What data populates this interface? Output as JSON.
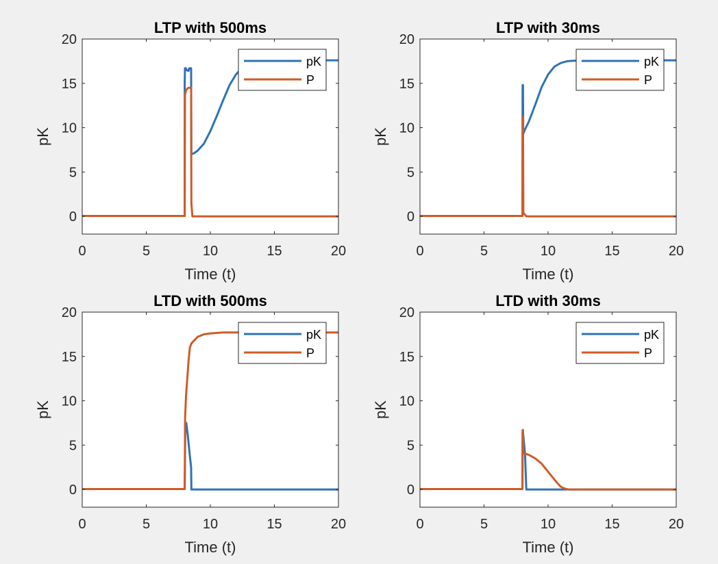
{
  "colors": {
    "pK": "#2f72b5",
    "P": "#cf5b27",
    "background": "#f0f0f0",
    "axes_background": "#ffffff"
  },
  "chart_data": [
    {
      "type": "line",
      "title": "LTP with 500ms",
      "xlabel": "Time (t)",
      "ylabel": "pK",
      "xlim": [
        0,
        20
      ],
      "ylim": [
        -2,
        20
      ],
      "xticks": [
        0,
        5,
        10,
        15,
        20
      ],
      "yticks": [
        0,
        5,
        10,
        15,
        20
      ],
      "legend_position": "top-right",
      "series": [
        {
          "name": "pK",
          "color": "#2f72b5",
          "x": [
            0,
            8,
            8.0,
            8.02,
            8.1,
            8.12,
            8.3,
            8.31,
            8.35,
            8.36,
            8.5,
            8.52,
            8.7,
            9.0,
            9.5,
            10.0,
            10.5,
            11.0,
            11.5,
            12.0,
            12.5,
            13.0,
            13.5,
            14.0,
            15.0,
            16.0,
            17.0,
            18.0,
            20.0
          ],
          "y": [
            0.05,
            0.05,
            15.0,
            16.7,
            16.7,
            16.5,
            16.4,
            16.6,
            16.6,
            16.7,
            16.7,
            7.0,
            7.1,
            7.4,
            8.2,
            9.6,
            11.3,
            13.1,
            14.8,
            16.0,
            16.8,
            17.2,
            17.4,
            17.5,
            17.6,
            17.6,
            17.6,
            17.6,
            17.6
          ]
        },
        {
          "name": "P",
          "color": "#cf5b27",
          "x": [
            0,
            8.0,
            8.02,
            8.1,
            8.2,
            8.3,
            8.5,
            8.52,
            8.6,
            20.0
          ],
          "y": [
            0.05,
            0.05,
            13.7,
            14.2,
            14.4,
            14.5,
            14.5,
            1.5,
            0.0,
            0.0
          ]
        }
      ]
    },
    {
      "type": "line",
      "title": "LTP with 30ms",
      "xlabel": "Time (t)",
      "ylabel": "pK",
      "xlim": [
        0,
        20
      ],
      "ylim": [
        -2,
        20
      ],
      "xticks": [
        0,
        5,
        10,
        15,
        20
      ],
      "yticks": [
        0,
        5,
        10,
        15,
        20
      ],
      "legend_position": "top-right",
      "series": [
        {
          "name": "pK",
          "color": "#2f72b5",
          "x": [
            0,
            8.0,
            8.01,
            8.04,
            8.06,
            8.2,
            8.5,
            9.0,
            9.5,
            10.0,
            10.5,
            11.0,
            11.5,
            12.0,
            13.0,
            15.0,
            17.0,
            20.0
          ],
          "y": [
            0.05,
            0.05,
            14.8,
            14.8,
            9.3,
            9.8,
            10.7,
            12.6,
            14.6,
            16.0,
            16.9,
            17.3,
            17.5,
            17.55,
            17.6,
            17.6,
            17.6,
            17.6
          ]
        },
        {
          "name": "P",
          "color": "#cf5b27",
          "x": [
            0,
            8.0,
            8.01,
            8.04,
            8.07,
            8.3,
            20.0
          ],
          "y": [
            0.05,
            0.05,
            11.2,
            11.2,
            0.4,
            0.0,
            0.0
          ]
        }
      ]
    },
    {
      "type": "line",
      "title": "LTD with 500ms",
      "xlabel": "Time (t)",
      "ylabel": "pK",
      "xlim": [
        0,
        20
      ],
      "ylim": [
        -2,
        20
      ],
      "xticks": [
        0,
        5,
        10,
        15,
        20
      ],
      "yticks": [
        0,
        5,
        10,
        15,
        20
      ],
      "legend_position": "top-right",
      "series": [
        {
          "name": "pK",
          "color": "#2f72b5",
          "x": [
            0,
            8.0,
            8.05,
            8.12,
            8.25,
            8.4,
            8.5,
            8.52,
            20.0
          ],
          "y": [
            0.05,
            0.05,
            7.5,
            7.5,
            6.0,
            3.8,
            2.5,
            0.0,
            0.0
          ]
        },
        {
          "name": "P",
          "color": "#cf5b27",
          "x": [
            0,
            8.0,
            8.03,
            8.1,
            8.2,
            8.3,
            8.4,
            8.5,
            8.6,
            8.8,
            9.0,
            9.5,
            10.0,
            11.0,
            12.0,
            14.0,
            20.0
          ],
          "y": [
            0.05,
            0.05,
            8.0,
            10.5,
            12.5,
            14.5,
            16.0,
            16.4,
            16.6,
            16.9,
            17.2,
            17.5,
            17.6,
            17.7,
            17.7,
            17.7,
            17.7
          ]
        }
      ]
    },
    {
      "type": "line",
      "title": "LTD with 30ms",
      "xlabel": "Time (t)",
      "ylabel": "pK",
      "xlim": [
        0,
        20
      ],
      "ylim": [
        -2,
        20
      ],
      "xticks": [
        0,
        5,
        10,
        15,
        20
      ],
      "yticks": [
        0,
        5,
        10,
        15,
        20
      ],
      "legend_position": "top-right",
      "series": [
        {
          "name": "pK",
          "color": "#2f72b5",
          "x": [
            0,
            8.0,
            8.01,
            8.04,
            8.2,
            8.3,
            20.0
          ],
          "y": [
            0.05,
            0.05,
            6.5,
            6.5,
            4.0,
            0.0,
            0.0
          ]
        },
        {
          "name": "P",
          "color": "#cf5b27",
          "x": [
            0,
            8.0,
            8.01,
            8.04,
            8.07,
            8.5,
            9.0,
            9.5,
            10.0,
            10.5,
            10.8,
            11.0,
            11.3,
            11.6,
            20.0
          ],
          "y": [
            0.05,
            0.05,
            6.7,
            6.7,
            4.1,
            3.9,
            3.5,
            2.9,
            2.0,
            1.1,
            0.6,
            0.3,
            0.1,
            0.0,
            0.0
          ]
        }
      ]
    }
  ]
}
